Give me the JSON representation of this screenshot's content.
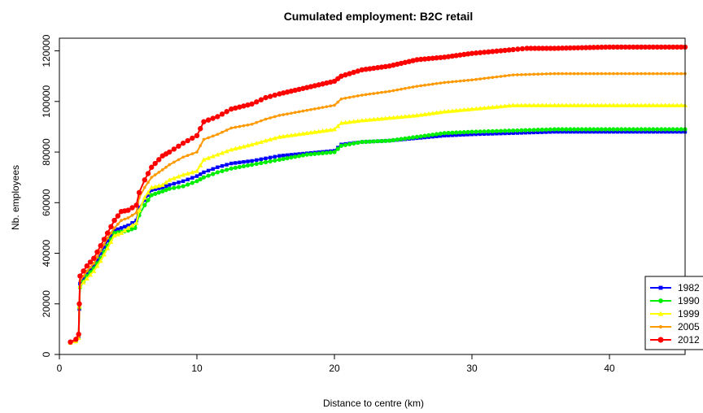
{
  "chart_data": {
    "type": "line",
    "title": "Cumulated employment: B2C retail",
    "xlabel": "Distance to centre (km)",
    "ylabel": "Nb. employees",
    "xlim": [
      0,
      45.5
    ],
    "ylim": [
      0,
      125000
    ],
    "xticks": [
      0,
      10,
      20,
      30,
      40
    ],
    "yticks": [
      0,
      20000,
      40000,
      60000,
      80000,
      100000,
      120000
    ],
    "legend_position": "bottom-right",
    "series": [
      {
        "name": "1982",
        "color": "#0000ff",
        "marker": "square",
        "points": [
          [
            0.8,
            5000
          ],
          [
            1.2,
            5600
          ],
          [
            1.4,
            7000
          ],
          [
            1.45,
            18000
          ],
          [
            1.5,
            28000
          ],
          [
            2,
            32000
          ],
          [
            2.5,
            35000
          ],
          [
            3,
            40000
          ],
          [
            3.5,
            45000
          ],
          [
            4,
            49000
          ],
          [
            4.5,
            50000
          ],
          [
            5,
            51000
          ],
          [
            5.6,
            53000
          ],
          [
            5.8,
            58000
          ],
          [
            6.2,
            61000
          ],
          [
            6.7,
            65000
          ],
          [
            7.5,
            66000
          ],
          [
            8,
            67000
          ],
          [
            9,
            68500
          ],
          [
            10,
            70500
          ],
          [
            10.5,
            72000
          ],
          [
            11.5,
            74000
          ],
          [
            12.5,
            75500
          ],
          [
            14,
            76500
          ],
          [
            15,
            77500
          ],
          [
            16,
            78500
          ],
          [
            18,
            79500
          ],
          [
            20,
            80500
          ],
          [
            20.5,
            83000
          ],
          [
            22,
            84000
          ],
          [
            24,
            84500
          ],
          [
            26,
            85500
          ],
          [
            28,
            86500
          ],
          [
            30,
            87000
          ],
          [
            33,
            87500
          ],
          [
            36,
            88000
          ],
          [
            40,
            88000
          ],
          [
            45.5,
            88000
          ]
        ]
      },
      {
        "name": "1990",
        "color": "#00ee00",
        "marker": "circle",
        "points": [
          [
            0.8,
            4800
          ],
          [
            1.2,
            5400
          ],
          [
            1.4,
            7500
          ],
          [
            1.45,
            18500
          ],
          [
            1.5,
            26500
          ],
          [
            2,
            31000
          ],
          [
            2.5,
            34000
          ],
          [
            3,
            38000
          ],
          [
            3.5,
            43000
          ],
          [
            4,
            48000
          ],
          [
            4.5,
            48500
          ],
          [
            5,
            49000
          ],
          [
            5.5,
            50000
          ],
          [
            5.8,
            55000
          ],
          [
            6.2,
            59000
          ],
          [
            6.7,
            63000
          ],
          [
            7.5,
            64500
          ],
          [
            8,
            65500
          ],
          [
            9,
            66500
          ],
          [
            10,
            68500
          ],
          [
            10.5,
            70000
          ],
          [
            11.5,
            72000
          ],
          [
            12.5,
            73500
          ],
          [
            14,
            75000
          ],
          [
            15,
            76000
          ],
          [
            16,
            77000
          ],
          [
            18,
            79000
          ],
          [
            20,
            80000
          ],
          [
            20.5,
            82500
          ],
          [
            22,
            84000
          ],
          [
            24,
            84500
          ],
          [
            26,
            86000
          ],
          [
            28,
            87500
          ],
          [
            30,
            88000
          ],
          [
            33,
            88500
          ],
          [
            36,
            89000
          ],
          [
            40,
            89000
          ],
          [
            45.5,
            89000
          ]
        ]
      },
      {
        "name": "1999",
        "color": "#ffff00",
        "marker": "triangle",
        "points": [
          [
            0.8,
            4600
          ],
          [
            1.2,
            5200
          ],
          [
            1.4,
            6500
          ],
          [
            1.45,
            19000
          ],
          [
            1.5,
            27000
          ],
          [
            2,
            30000
          ],
          [
            2.5,
            33000
          ],
          [
            3,
            37000
          ],
          [
            3.5,
            42000
          ],
          [
            4,
            47000
          ],
          [
            4.5,
            48000
          ],
          [
            5,
            50000
          ],
          [
            5.6,
            52000
          ],
          [
            5.8,
            57000
          ],
          [
            6.2,
            62000
          ],
          [
            6.7,
            66000
          ],
          [
            7.5,
            67000
          ],
          [
            8,
            69000
          ],
          [
            9,
            71000
          ],
          [
            10,
            72500
          ],
          [
            10.5,
            77000
          ],
          [
            11.5,
            79000
          ],
          [
            12.5,
            81000
          ],
          [
            14,
            83000
          ],
          [
            15,
            84500
          ],
          [
            16,
            86000
          ],
          [
            18,
            87500
          ],
          [
            20,
            89000
          ],
          [
            20.5,
            91500
          ],
          [
            22,
            92500
          ],
          [
            24,
            93500
          ],
          [
            26,
            94500
          ],
          [
            28,
            96000
          ],
          [
            30,
            97000
          ],
          [
            33,
            98500
          ],
          [
            36,
            98500
          ],
          [
            40,
            98500
          ],
          [
            45.5,
            98500
          ]
        ]
      },
      {
        "name": "2005",
        "color": "#ff9900",
        "marker": "plus",
        "points": [
          [
            0.8,
            4700
          ],
          [
            1.2,
            5500
          ],
          [
            1.4,
            7000
          ],
          [
            1.45,
            19500
          ],
          [
            1.5,
            29000
          ],
          [
            2,
            33000
          ],
          [
            2.5,
            36000
          ],
          [
            3,
            41000
          ],
          [
            3.5,
            46000
          ],
          [
            4,
            50000
          ],
          [
            4.5,
            53000
          ],
          [
            5,
            54000
          ],
          [
            5.6,
            56000
          ],
          [
            5.8,
            62000
          ],
          [
            6.2,
            66000
          ],
          [
            6.7,
            70000
          ],
          [
            7.5,
            73000
          ],
          [
            8,
            75000
          ],
          [
            9,
            78000
          ],
          [
            10,
            80000
          ],
          [
            10.5,
            85000
          ],
          [
            11.5,
            87000
          ],
          [
            12.5,
            89500
          ],
          [
            14,
            91000
          ],
          [
            15,
            93000
          ],
          [
            16,
            94500
          ],
          [
            18,
            96500
          ],
          [
            20,
            98500
          ],
          [
            20.5,
            101000
          ],
          [
            22,
            102500
          ],
          [
            24,
            104000
          ],
          [
            26,
            106000
          ],
          [
            28,
            107500
          ],
          [
            30,
            108500
          ],
          [
            33,
            110500
          ],
          [
            36,
            111000
          ],
          [
            40,
            111000
          ],
          [
            45.5,
            111000
          ]
        ]
      },
      {
        "name": "2012",
        "color": "#ff0000",
        "marker": "circle-large",
        "points": [
          [
            0.8,
            4900
          ],
          [
            1.2,
            6000
          ],
          [
            1.4,
            8000
          ],
          [
            1.45,
            20000
          ],
          [
            1.5,
            31000
          ],
          [
            2,
            35000
          ],
          [
            2.5,
            38000
          ],
          [
            3,
            43000
          ],
          [
            3.5,
            48000
          ],
          [
            4,
            53000
          ],
          [
            4.5,
            56500
          ],
          [
            5,
            57000
          ],
          [
            5.6,
            59000
          ],
          [
            5.8,
            64000
          ],
          [
            6.2,
            69000
          ],
          [
            6.7,
            74000
          ],
          [
            7.5,
            78500
          ],
          [
            8,
            80000
          ],
          [
            9,
            83500
          ],
          [
            10,
            86500
          ],
          [
            10.5,
            92000
          ],
          [
            11.5,
            94000
          ],
          [
            12.5,
            97000
          ],
          [
            14,
            99000
          ],
          [
            15,
            101500
          ],
          [
            16,
            103000
          ],
          [
            18,
            105500
          ],
          [
            20,
            108000
          ],
          [
            20.5,
            110000
          ],
          [
            22,
            112500
          ],
          [
            24,
            114000
          ],
          [
            26,
            116500
          ],
          [
            28,
            117500
          ],
          [
            30,
            119000
          ],
          [
            33,
            120500
          ],
          [
            34,
            121000
          ],
          [
            36,
            121000
          ],
          [
            40,
            121500
          ],
          [
            45.5,
            121500
          ]
        ]
      }
    ]
  }
}
